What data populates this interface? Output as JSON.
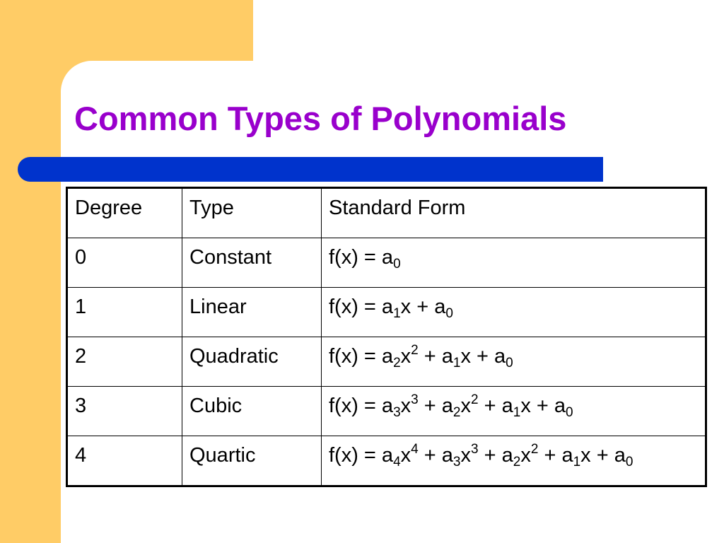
{
  "title": "Common Types of Polynomials",
  "colors": {
    "title": "#9900cc",
    "bar": "#0033cc",
    "accent_background": "#ffcc66"
  },
  "table": {
    "headers": [
      "Degree",
      "Type",
      "Standard Form"
    ],
    "rows": [
      {
        "degree": "0",
        "type": "Constant",
        "form": [
          [
            "t",
            "f(x) = a"
          ],
          [
            "sub",
            "0"
          ]
        ]
      },
      {
        "degree": "1",
        "type": "Linear",
        "form": [
          [
            "t",
            "f(x) = a"
          ],
          [
            "sub",
            "1"
          ],
          [
            "t",
            "x + a"
          ],
          [
            "sub",
            "0"
          ]
        ]
      },
      {
        "degree": "2",
        "type": "Quadratic",
        "form": [
          [
            "t",
            "f(x) = a"
          ],
          [
            "sub",
            "2"
          ],
          [
            "t",
            "x"
          ],
          [
            "sup",
            "2"
          ],
          [
            "t",
            " + a"
          ],
          [
            "sub",
            "1"
          ],
          [
            "t",
            "x + a"
          ],
          [
            "sub",
            "0"
          ]
        ]
      },
      {
        "degree": "3",
        "type": "Cubic",
        "form": [
          [
            "t",
            "f(x) = a"
          ],
          [
            "sub",
            "3"
          ],
          [
            "t",
            "x"
          ],
          [
            "sup",
            "3"
          ],
          [
            "t",
            " + a"
          ],
          [
            "sub",
            "2"
          ],
          [
            "t",
            "x"
          ],
          [
            "sup",
            "2"
          ],
          [
            "t",
            " + a"
          ],
          [
            "sub",
            "1"
          ],
          [
            "t",
            "x + a"
          ],
          [
            "sub",
            "0"
          ]
        ]
      },
      {
        "degree": "4",
        "type": "Quartic",
        "form": [
          [
            "t",
            "f(x) = a"
          ],
          [
            "sub",
            "4"
          ],
          [
            "t",
            "x"
          ],
          [
            "sup",
            "4"
          ],
          [
            "t",
            " + a"
          ],
          [
            "sub",
            "3"
          ],
          [
            "t",
            "x"
          ],
          [
            "sup",
            "3"
          ],
          [
            "t",
            " + a"
          ],
          [
            "sub",
            "2"
          ],
          [
            "t",
            "x"
          ],
          [
            "sup",
            "2"
          ],
          [
            "t",
            " + a"
          ],
          [
            "sub",
            "1"
          ],
          [
            "t",
            "x + a"
          ],
          [
            "sub",
            "0"
          ]
        ]
      }
    ]
  }
}
